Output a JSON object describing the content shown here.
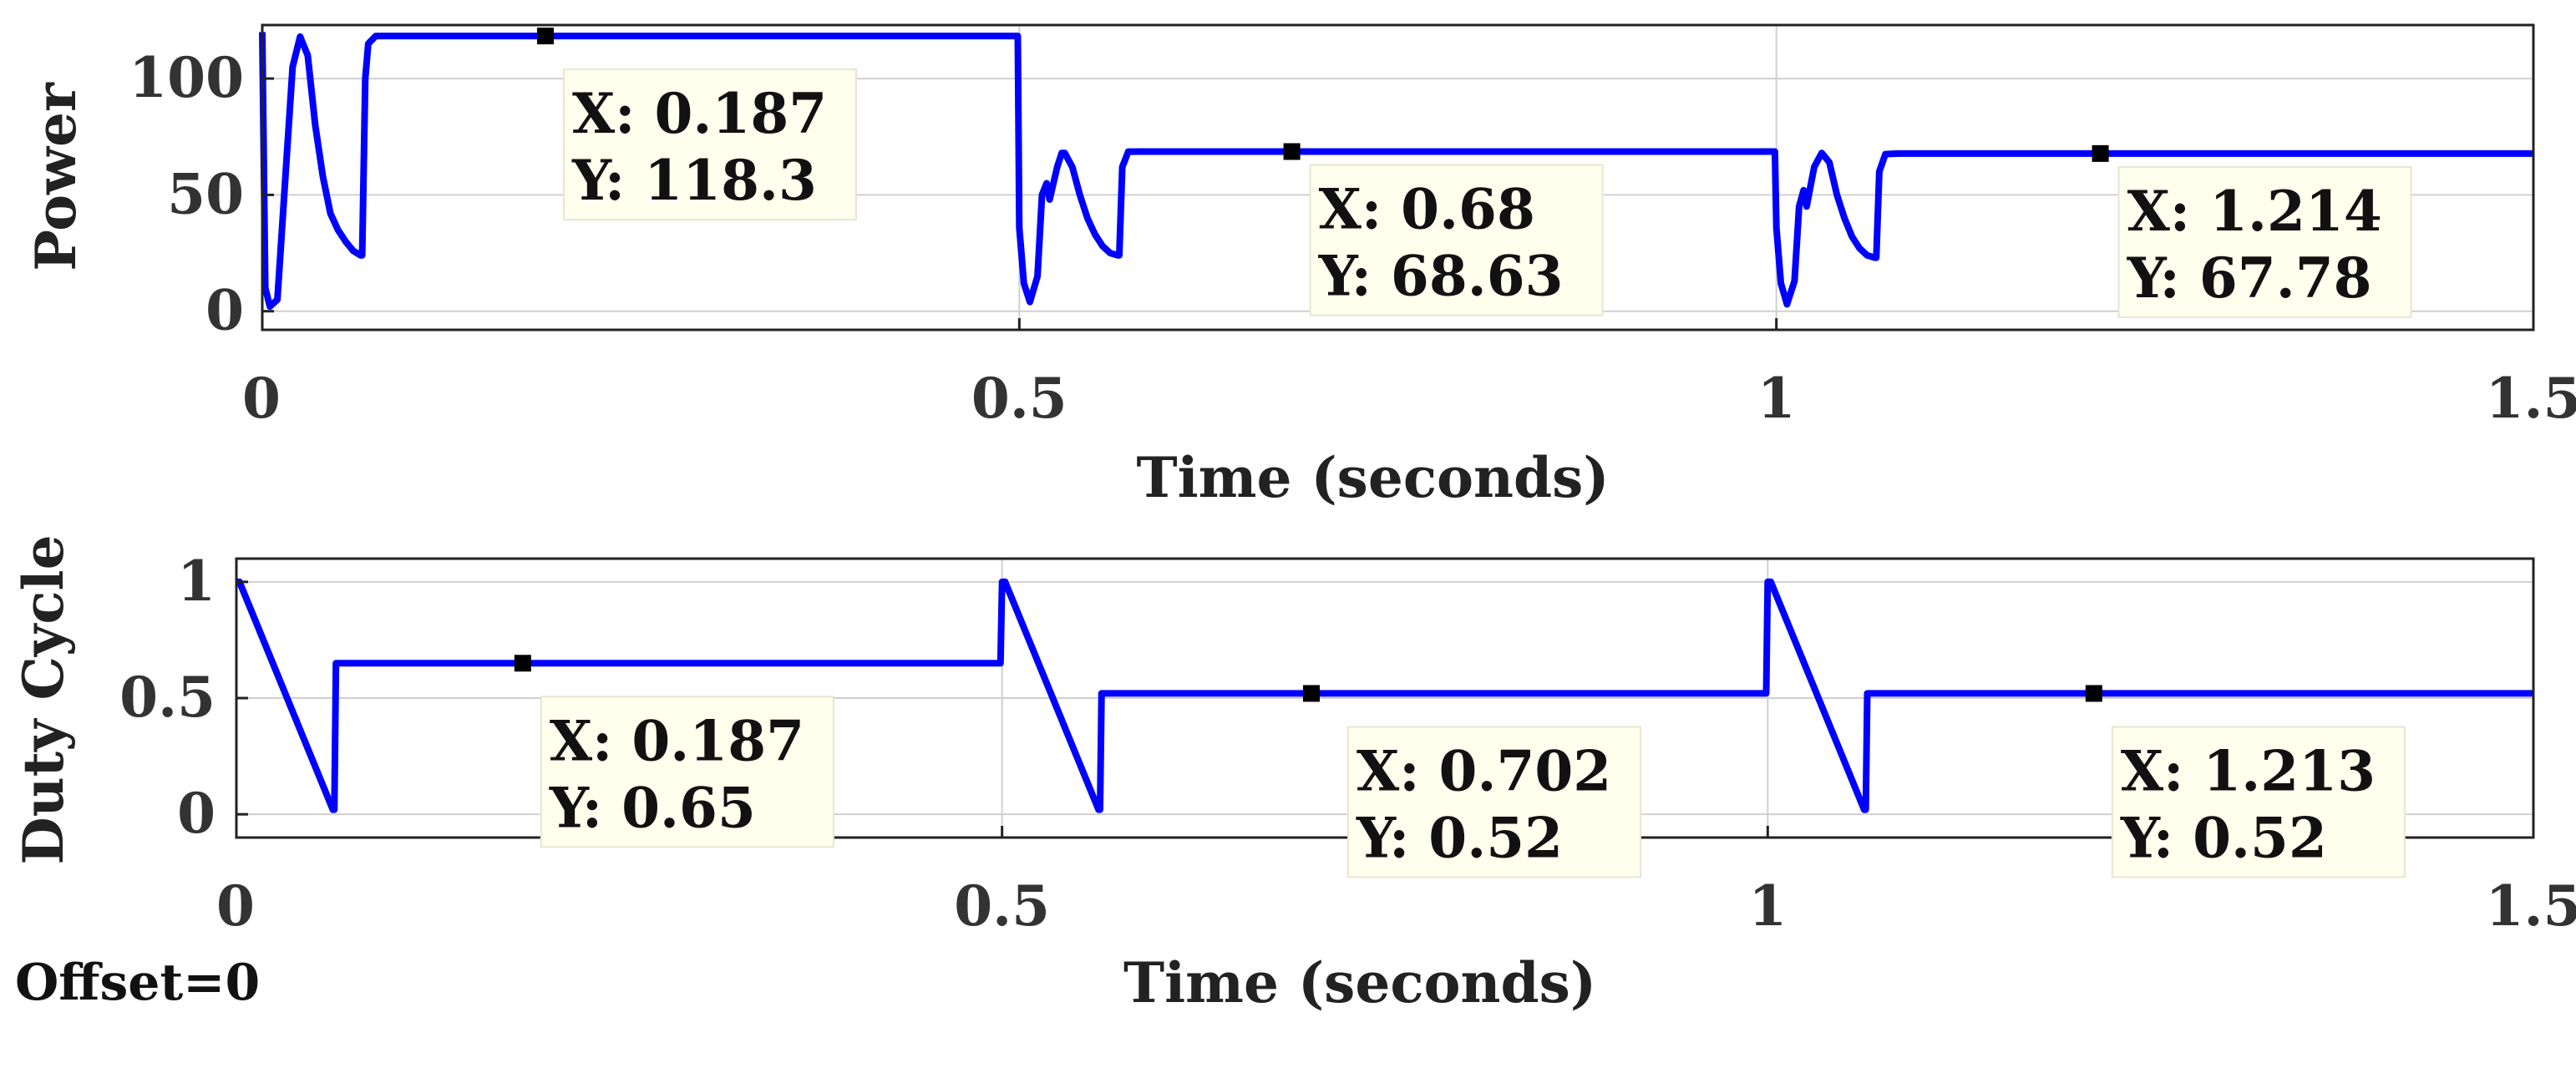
{
  "footer": {
    "offset_label": "Offset=0"
  },
  "chart_data": [
    {
      "type": "line",
      "xlabel": "Time (seconds)",
      "ylabel": "Power",
      "xlim": [
        0,
        1.5
      ],
      "ylim": [
        -8,
        123
      ],
      "xticks": [
        {
          "v": 0,
          "label": "0"
        },
        {
          "v": 0.5,
          "label": "0.5"
        },
        {
          "v": 1,
          "label": "1"
        },
        {
          "v": 1.5,
          "label": "1.5"
        }
      ],
      "yticks": [
        {
          "v": 0,
          "label": "0"
        },
        {
          "v": 50,
          "label": "50"
        },
        {
          "v": 100,
          "label": "100"
        }
      ],
      "grid": true,
      "series_color": "#0000ff",
      "x": [
        0,
        0.002,
        0.005,
        0.01,
        0.015,
        0.02,
        0.025,
        0.03,
        0.035,
        0.04,
        0.045,
        0.05,
        0.055,
        0.06,
        0.065,
        0.066,
        0.068,
        0.07,
        0.075,
        0.08,
        0.1,
        0.2,
        0.3,
        0.4,
        0.499,
        0.5,
        0.503,
        0.507,
        0.512,
        0.515,
        0.518,
        0.52,
        0.525,
        0.528,
        0.53,
        0.535,
        0.54,
        0.545,
        0.55,
        0.555,
        0.56,
        0.565,
        0.566,
        0.568,
        0.572,
        0.58,
        0.7,
        0.9,
        0.999,
        1.0,
        1.003,
        1.007,
        1.012,
        1.015,
        1.018,
        1.02,
        1.025,
        1.03,
        1.035,
        1.04,
        1.045,
        1.05,
        1.055,
        1.06,
        1.065,
        1.066,
        1.068,
        1.072,
        1.08,
        1.2,
        1.35,
        1.5
      ],
      "y": [
        120,
        10,
        2,
        5,
        55,
        105,
        118,
        110,
        80,
        58,
        42,
        35,
        30,
        26,
        24,
        24,
        100,
        115,
        118.3,
        118.3,
        118.3,
        118.3,
        118.3,
        118.3,
        118.3,
        36,
        12,
        4,
        15,
        50,
        55,
        48,
        62,
        68,
        68,
        62,
        50,
        40,
        33,
        28,
        25,
        24,
        24,
        62,
        68.6,
        68.63,
        68.63,
        68.63,
        68.63,
        36,
        12,
        3,
        13,
        45,
        52,
        45,
        62,
        68,
        64,
        50,
        40,
        32,
        27,
        24,
        23,
        23,
        60,
        67.5,
        67.78,
        67.78,
        67.78,
        67.78
      ],
      "datatips": [
        {
          "x": 0.187,
          "y": 118.3,
          "label_x": "X: 0.187",
          "label_y": "Y: 118.3"
        },
        {
          "x": 0.68,
          "y": 68.63,
          "label_x": "X: 0.68",
          "label_y": "Y: 68.63"
        },
        {
          "x": 1.214,
          "y": 67.78,
          "label_x": "X: 1.214",
          "label_y": "Y: 67.78"
        }
      ]
    },
    {
      "type": "line",
      "xlabel": "Time (seconds)",
      "ylabel": "Duty Cycle",
      "xlim": [
        0,
        1.5
      ],
      "ylim": [
        -0.1,
        1.1
      ],
      "xticks": [
        {
          "v": 0,
          "label": "0"
        },
        {
          "v": 0.5,
          "label": "0.5"
        },
        {
          "v": 1,
          "label": "1"
        },
        {
          "v": 1.5,
          "label": "1.5"
        }
      ],
      "yticks": [
        {
          "v": 0,
          "label": "0"
        },
        {
          "v": 0.5,
          "label": "0.5"
        },
        {
          "v": 1,
          "label": "1"
        }
      ],
      "grid": true,
      "series_color": "#0000ff",
      "x": [
        0,
        0.002,
        0.063,
        0.064,
        0.065,
        0.499,
        0.5,
        0.502,
        0.563,
        0.564,
        0.565,
        0.999,
        1.0,
        1.002,
        1.063,
        1.064,
        1.065,
        1.5
      ],
      "y": [
        1,
        1,
        0.02,
        0.02,
        0.65,
        0.65,
        1,
        1,
        0.02,
        0.02,
        0.52,
        0.52,
        1,
        1,
        0.02,
        0.02,
        0.52,
        0.52
      ],
      "datatips": [
        {
          "x": 0.187,
          "y": 0.65,
          "label_x": "X: 0.187",
          "label_y": "Y: 0.65"
        },
        {
          "x": 0.702,
          "y": 0.52,
          "label_x": "X: 0.702",
          "label_y": "Y: 0.52"
        },
        {
          "x": 1.213,
          "y": 0.52,
          "label_x": "X: 1.213",
          "label_y": "Y: 0.52"
        }
      ]
    }
  ]
}
